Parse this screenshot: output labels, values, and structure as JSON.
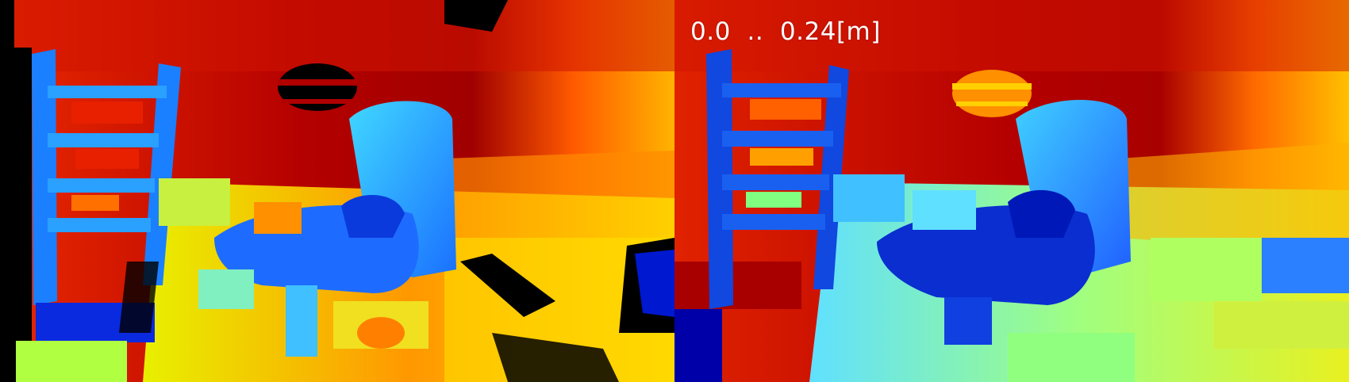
{
  "depth_range_label": "0.0  ..  0.24[m]",
  "colormap": {
    "name": "jet",
    "near_color": "#0000b0",
    "mid_color": "#40e0ff",
    "far_color": "#c80000",
    "invalid_color": "#000000"
  }
}
